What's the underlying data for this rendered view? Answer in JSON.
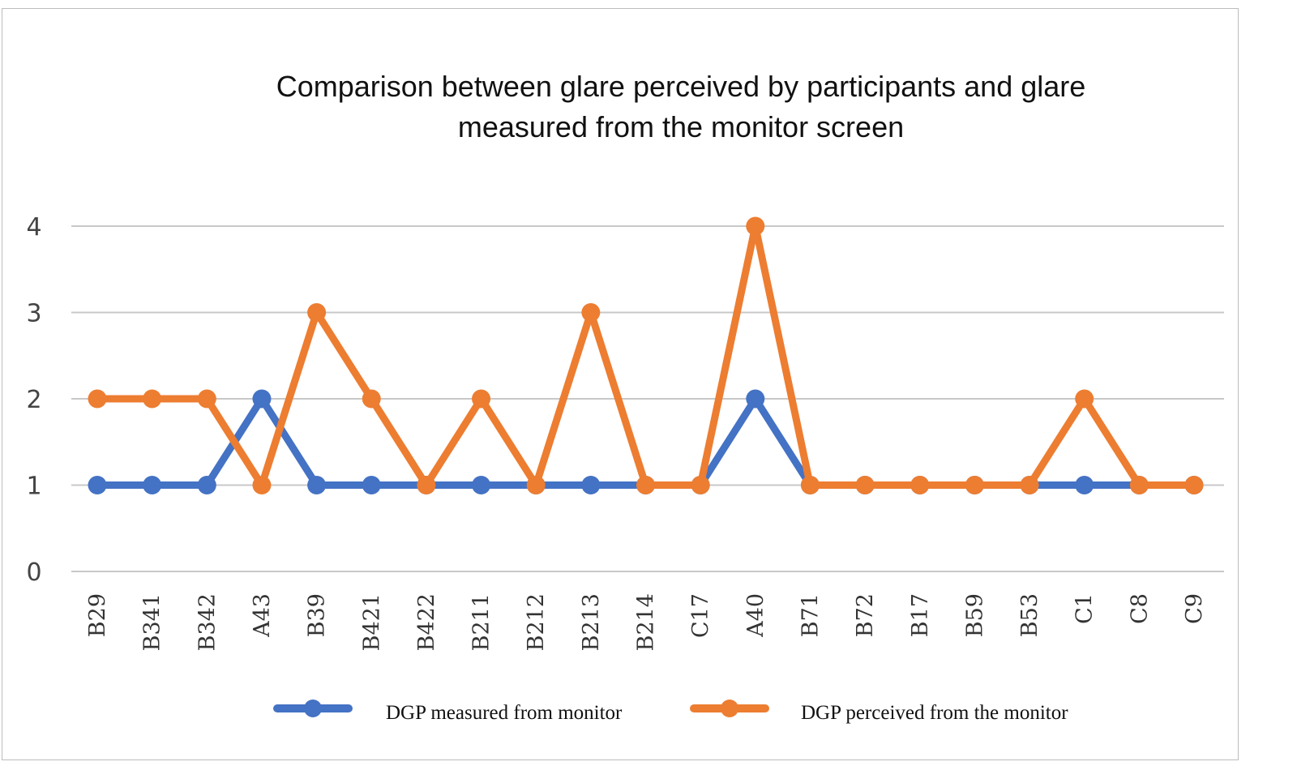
{
  "chart_data": {
    "type": "line",
    "title": "Comparison between glare perceived by participants and glare measured from the monitor screen",
    "title_lines": [
      "Comparison between glare perceived by participants and glare",
      "measured from the monitor screen"
    ],
    "xlabel": "",
    "ylabel": "",
    "ylim": [
      0,
      4
    ],
    "yticks": [
      "0",
      "1",
      "2",
      "3",
      "4"
    ],
    "grid": true,
    "legend_position": "bottom",
    "categories": [
      "B29",
      "B341",
      "B342",
      "A43",
      "B39",
      "B421",
      "B422",
      "B211",
      "B212",
      "B213",
      "B214",
      "C17",
      "A40",
      "B71",
      "B72",
      "B17",
      "B59",
      "B53",
      "C1",
      "C8",
      "C9"
    ],
    "series": [
      {
        "name": "DGP measured from monitor",
        "color": "#4472C4",
        "values": [
          1,
          1,
          1,
          2,
          1,
          1,
          1,
          1,
          1,
          1,
          1,
          1,
          2,
          1,
          1,
          1,
          1,
          1,
          1,
          1,
          1
        ]
      },
      {
        "name": "DGP perceived from the monitor",
        "color": "#ED7D31",
        "values": [
          2,
          2,
          2,
          1,
          3,
          2,
          1,
          2,
          1,
          3,
          1,
          1,
          4,
          1,
          1,
          1,
          1,
          1,
          2,
          1,
          1
        ]
      }
    ]
  }
}
